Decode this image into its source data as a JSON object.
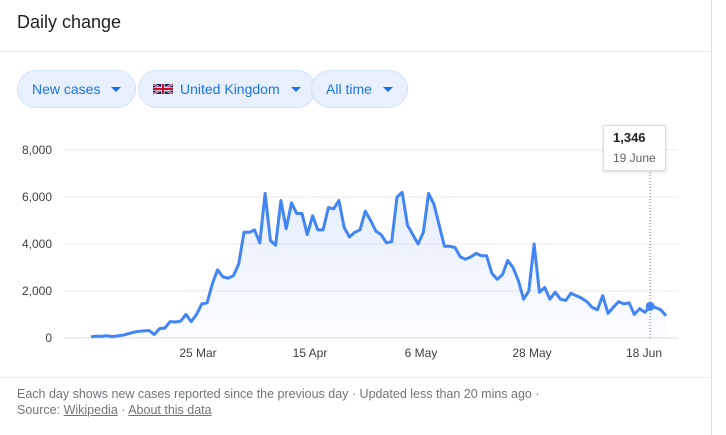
{
  "card": {
    "title": "Daily change"
  },
  "filters": {
    "metric": "New cases",
    "region": "United Kingdom",
    "range": "All time"
  },
  "tooltip": {
    "value": "1,346",
    "date": "19 June"
  },
  "footer": {
    "line1": "Each day shows new cases reported since the previous day · Updated less than 20 mins ago ·",
    "source_label": "Source:",
    "source_link": "Wikipedia",
    "separator": "·",
    "about_link": "About this data"
  },
  "colors": {
    "line": "#4285f4",
    "accent": "#1a73e8",
    "chip_bg": "#e8f0fe"
  },
  "chart_data": {
    "type": "area",
    "x_tick_labels": [
      "25 Mar",
      "15 Apr",
      "6 May",
      "28 May",
      "18 Jun"
    ],
    "y_tick_labels": [
      "0",
      "2,000",
      "4,000",
      "6,000",
      "8,000"
    ],
    "ylim": [
      0,
      8000
    ],
    "grid": true,
    "series": [
      {
        "values": [
          50,
          80,
          70,
          100,
          60,
          90,
          120,
          180,
          240,
          280,
          300,
          320,
          150,
          400,
          420,
          700,
          680,
          720,
          1000,
          700,
          1000,
          1450,
          1500,
          2300,
          2900,
          2600,
          2550,
          2650,
          3150,
          4500,
          4500,
          4600,
          4050,
          6150,
          4150,
          3950,
          5850,
          4650,
          5750,
          5300,
          5300,
          4400,
          5200,
          4600,
          4600,
          5550,
          5500,
          5850,
          4700,
          4300,
          4500,
          4600,
          5400,
          5000,
          4550,
          4400,
          4050,
          4100,
          6000,
          6200,
          4800,
          4400,
          4000,
          4500,
          6150,
          5700,
          4800,
          3900,
          3900,
          3850,
          3450,
          3350,
          3450,
          3600,
          3500,
          3500,
          2750,
          2500,
          2700,
          3300,
          3000,
          2450,
          1650,
          2000,
          4000,
          1950,
          2150,
          1650,
          1950,
          1650,
          1600,
          1900,
          1800,
          1700,
          1550,
          1300,
          1200,
          1800,
          1050,
          1300,
          1550,
          1450,
          1500,
          1000,
          1250,
          1100,
          1346,
          1300,
          1200,
          950
        ]
      }
    ],
    "highlight": {
      "label": "19 June",
      "value": 1346
    }
  }
}
